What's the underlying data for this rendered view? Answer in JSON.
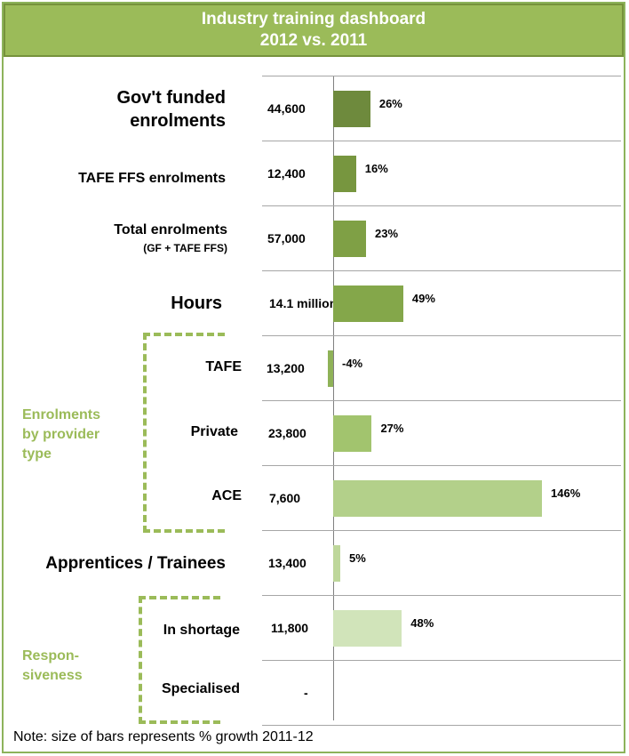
{
  "chart_data": {
    "type": "bar",
    "title": "Industry training dashboard",
    "subtitle": "2012 vs. 2011",
    "note": "Note: size of bars represents % growth 2011-12",
    "rows": [
      {
        "label_lines": [
          "Gov't funded",
          "enrolments"
        ],
        "value_text": "44,600",
        "growth": 26,
        "pct_text": "26%",
        "color": "#6e8a3d"
      },
      {
        "label_lines": [
          "TAFE FFS enrolments"
        ],
        "value_text": "12,400",
        "growth": 16,
        "pct_text": "16%",
        "color": "#77963f"
      },
      {
        "label_lines": [
          "Total enrolments",
          "(GF + TAFE FFS)"
        ],
        "value_text": "57,000",
        "growth": 23,
        "pct_text": "23%",
        "color": "#7fa045"
      },
      {
        "label_lines": [
          "Hours"
        ],
        "value_text": "14.1 million",
        "growth": 49,
        "pct_text": "49%",
        "color": "#84a74a"
      },
      {
        "label_lines": [
          "TAFE"
        ],
        "value_text": "13,200",
        "growth": -4,
        "pct_text": "-4%",
        "color": "#8fb258"
      },
      {
        "label_lines": [
          "Private"
        ],
        "value_text": "23,800",
        "growth": 27,
        "pct_text": "27%",
        "color": "#a2c46e"
      },
      {
        "label_lines": [
          "ACE"
        ],
        "value_text": "7,600",
        "growth": 146,
        "pct_text": "146%",
        "color": "#b3d08a"
      },
      {
        "label_lines": [
          "Apprentices / Trainees"
        ],
        "value_text": "13,400",
        "growth": 5,
        "pct_text": "5%",
        "color": "#bed79b"
      },
      {
        "label_lines": [
          "In shortage"
        ],
        "value_text": "11,800",
        "growth": 48,
        "pct_text": "48%",
        "color": "#d1e4ba"
      },
      {
        "label_lines": [
          "Specialised"
        ],
        "value_text": "-",
        "growth": null,
        "pct_text": "",
        "color": "#d1e4ba"
      }
    ],
    "groups": [
      {
        "name": "Enrolments by provider type",
        "label_lines": [
          "Enrolments",
          "by provider",
          "type"
        ]
      },
      {
        "name": "Responsiveness",
        "label_lines": [
          "Respon-",
          "siveness"
        ]
      }
    ],
    "xlim": [
      -4,
      146
    ],
    "grid": true
  }
}
